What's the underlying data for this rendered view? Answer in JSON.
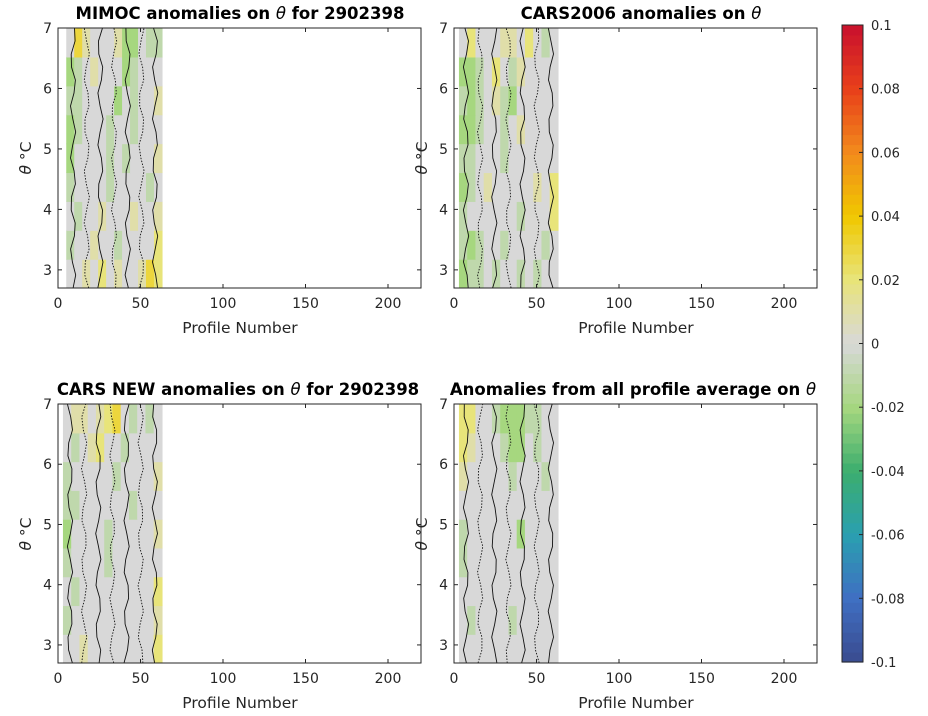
{
  "chart_data": [
    {
      "type": "heatmap",
      "title_text": "MIMOC anomalies on",
      "title_sym": "θ",
      "title_suffix": "for 2902398",
      "xlabel": "Profile Number",
      "ylabel_sym": "θ",
      "ylabel_unit": "°C",
      "xlim": [
        0,
        220
      ],
      "ylim": [
        2.7,
        7
      ],
      "xticks": [
        0,
        50,
        100,
        150,
        200
      ],
      "yticks": [
        3,
        4,
        5,
        6,
        7
      ],
      "profile_range": [
        5,
        63
      ],
      "cell_values": [
        [
          0.0,
          0.0,
          0.01,
          0.0,
          0.02,
          0.0,
          0.01,
          0.0,
          0.0,
          0.01,
          0.03,
          0.02
        ],
        [
          -0.01,
          0.0,
          0.0,
          0.01,
          0.0,
          0.0,
          -0.01,
          0.0,
          0.0,
          0.0,
          0.0,
          0.02
        ],
        [
          0.0,
          -0.01,
          0.0,
          0.0,
          0.01,
          0.0,
          0.0,
          0.0,
          0.01,
          0.0,
          0.0,
          0.01
        ],
        [
          -0.01,
          0.0,
          0.0,
          0.0,
          0.0,
          -0.01,
          0.0,
          0.0,
          0.0,
          0.0,
          -0.01,
          0.0
        ],
        [
          -0.02,
          0.0,
          0.0,
          0.0,
          0.0,
          -0.01,
          0.0,
          -0.01,
          0.0,
          0.0,
          0.0,
          0.01
        ],
        [
          -0.02,
          -0.01,
          0.0,
          0.0,
          0.0,
          -0.01,
          0.0,
          0.0,
          -0.01,
          0.0,
          0.0,
          0.0
        ],
        [
          -0.01,
          -0.01,
          0.0,
          0.0,
          0.0,
          0.0,
          -0.02,
          0.0,
          -0.01,
          0.0,
          0.0,
          0.01
        ],
        [
          -0.02,
          -0.01,
          0.0,
          0.01,
          0.0,
          0.0,
          0.0,
          -0.02,
          -0.01,
          0.0,
          0.0,
          0.0
        ],
        [
          0.0,
          0.03,
          0.01,
          0.0,
          0.0,
          0.0,
          0.01,
          -0.02,
          -0.02,
          0.0,
          -0.01,
          -0.01
        ]
      ]
    },
    {
      "type": "heatmap",
      "title_text": "CARS2006 anomalies on",
      "title_sym": "θ",
      "title_suffix": "",
      "xlabel": "Profile Number",
      "ylabel_sym": "θ",
      "ylabel_unit": "°C",
      "xlim": [
        0,
        220
      ],
      "ylim": [
        2.7,
        7
      ],
      "xticks": [
        0,
        50,
        100,
        150,
        200
      ],
      "yticks": [
        3,
        4,
        5,
        6,
        7
      ],
      "profile_range": [
        3,
        63
      ],
      "cell_values": [
        [
          -0.02,
          -0.01,
          -0.01,
          0.0,
          -0.01,
          0.0,
          0.0,
          -0.01,
          0.0,
          -0.01,
          0.0,
          0.0
        ],
        [
          -0.01,
          -0.02,
          -0.01,
          0.0,
          0.0,
          -0.01,
          0.0,
          0.0,
          0.0,
          0.0,
          -0.01,
          0.0
        ],
        [
          -0.01,
          0.0,
          0.0,
          0.0,
          0.0,
          0.0,
          0.0,
          -0.01,
          0.0,
          0.0,
          0.0,
          0.02
        ],
        [
          -0.02,
          -0.01,
          0.0,
          0.01,
          0.0,
          0.0,
          0.0,
          0.0,
          0.0,
          0.01,
          0.0,
          0.02
        ],
        [
          -0.01,
          -0.01,
          0.0,
          0.0,
          0.0,
          -0.01,
          0.0,
          0.0,
          0.0,
          0.0,
          0.0,
          0.0
        ],
        [
          -0.02,
          -0.02,
          -0.01,
          0.0,
          0.0,
          -0.01,
          0.0,
          0.01,
          0.0,
          0.0,
          0.0,
          0.0
        ],
        [
          -0.01,
          -0.02,
          -0.01,
          0.0,
          0.01,
          -0.01,
          -0.02,
          0.0,
          0.0,
          0.0,
          0.0,
          0.0
        ],
        [
          -0.02,
          -0.02,
          -0.01,
          0.0,
          0.02,
          0.0,
          -0.01,
          0.01,
          0.0,
          0.0,
          0.0,
          0.0
        ],
        [
          0.0,
          0.02,
          0.0,
          0.0,
          0.0,
          0.01,
          0.01,
          0.0,
          0.02,
          0.0,
          -0.01,
          0.0
        ]
      ]
    },
    {
      "type": "heatmap",
      "title_text": "CARS NEW anomalies on",
      "title_sym": "θ",
      "title_suffix": "for 2902398",
      "xlabel": "Profile Number",
      "ylabel_sym": "θ",
      "ylabel_unit": "°C",
      "xlim": [
        0,
        220
      ],
      "ylim": [
        2.7,
        7
      ],
      "xticks": [
        0,
        50,
        100,
        150,
        200
      ],
      "yticks": [
        3,
        4,
        5,
        6,
        7
      ],
      "profile_range": [
        3,
        63
      ],
      "cell_values": [
        [
          0.0,
          0.0,
          0.01,
          0.0,
          0.0,
          0.0,
          0.0,
          0.0,
          0.0,
          0.0,
          0.0,
          0.02
        ],
        [
          -0.01,
          0.0,
          0.0,
          0.0,
          0.0,
          0.0,
          0.0,
          0.0,
          0.0,
          0.0,
          0.0,
          0.01
        ],
        [
          0.0,
          -0.01,
          0.0,
          0.0,
          0.0,
          0.0,
          0.0,
          0.0,
          0.0,
          0.0,
          0.0,
          0.02
        ],
        [
          -0.01,
          0.0,
          0.0,
          0.0,
          0.0,
          -0.01,
          0.0,
          0.0,
          0.0,
          0.0,
          0.0,
          0.0
        ],
        [
          -0.02,
          0.0,
          0.0,
          0.0,
          0.0,
          -0.01,
          0.0,
          0.0,
          0.0,
          0.0,
          0.0,
          0.01
        ],
        [
          -0.01,
          -0.01,
          0.0,
          0.0,
          0.0,
          0.0,
          0.0,
          0.0,
          -0.01,
          0.0,
          0.0,
          0.0
        ],
        [
          -0.01,
          0.0,
          0.0,
          0.0,
          0.0,
          0.0,
          -0.01,
          0.0,
          0.0,
          0.0,
          0.0,
          0.01
        ],
        [
          0.0,
          -0.01,
          0.0,
          0.01,
          0.02,
          0.0,
          0.0,
          -0.01,
          0.0,
          0.0,
          0.0,
          0.0
        ],
        [
          0.0,
          0.01,
          0.01,
          0.0,
          0.01,
          0.02,
          0.03,
          0.0,
          -0.01,
          0.0,
          -0.01,
          0.0
        ]
      ]
    },
    {
      "type": "heatmap",
      "title_text": "Anomalies from all profile average on",
      "title_sym": "θ",
      "title_suffix": "",
      "xlabel": "Profile Number",
      "ylabel_sym": "θ",
      "ylabel_unit": "°C",
      "xlim": [
        0,
        220
      ],
      "ylim": [
        2.7,
        7
      ],
      "xticks": [
        0,
        50,
        100,
        150,
        200
      ],
      "yticks": [
        3,
        4,
        5,
        6,
        7
      ],
      "profile_range": [
        3,
        63
      ],
      "cell_values": [
        [
          0.0,
          0.0,
          0.0,
          0.0,
          0.0,
          0.0,
          0.0,
          0.0,
          0.0,
          0.0,
          0.0,
          0.0
        ],
        [
          0.0,
          -0.01,
          0.0,
          0.0,
          0.0,
          0.0,
          -0.01,
          0.0,
          0.0,
          0.0,
          0.0,
          0.0
        ],
        [
          0.0,
          0.0,
          0.0,
          0.0,
          0.0,
          0.0,
          0.0,
          0.0,
          0.0,
          0.0,
          0.0,
          0.0
        ],
        [
          -0.01,
          0.0,
          0.0,
          0.0,
          0.0,
          0.0,
          0.0,
          0.0,
          0.0,
          0.0,
          0.0,
          0.0
        ],
        [
          -0.01,
          0.0,
          0.0,
          0.0,
          0.0,
          0.0,
          0.0,
          -0.02,
          0.0,
          0.0,
          0.0,
          0.0
        ],
        [
          0.0,
          0.0,
          0.0,
          0.0,
          0.0,
          0.0,
          0.0,
          0.0,
          0.0,
          0.0,
          0.0,
          0.0
        ],
        [
          0.01,
          0.0,
          0.0,
          0.0,
          0.0,
          0.0,
          -0.01,
          0.0,
          0.0,
          0.0,
          -0.01,
          0.0
        ],
        [
          0.02,
          0.01,
          0.0,
          0.0,
          0.0,
          -0.01,
          -0.02,
          -0.02,
          0.0,
          -0.01,
          0.0,
          0.0
        ],
        [
          0.02,
          0.02,
          0.0,
          0.0,
          -0.01,
          -0.02,
          -0.02,
          -0.02,
          -0.01,
          -0.01,
          0.0,
          0.0
        ]
      ]
    }
  ],
  "colorbar": {
    "limits": [
      -0.1,
      0.1
    ],
    "tick_values": [
      -0.1,
      -0.08,
      -0.06,
      -0.04,
      -0.02,
      0,
      0.02,
      0.04,
      0.06,
      0.08,
      0.1
    ],
    "tick_labels": [
      "-0.1",
      "-0.08",
      "-0.06",
      "-0.04",
      "-0.02",
      "0",
      "0.02",
      "0.04",
      "0.06",
      "0.08",
      "0.1"
    ],
    "colormap_stops": [
      "#3a4b8f",
      "#3f6fc2",
      "#2a9fb0",
      "#3cae6e",
      "#a6d77f",
      "#d8d8d8",
      "#e8e47a",
      "#f0c800",
      "#f28a1c",
      "#e8401a",
      "#c8102e"
    ]
  }
}
